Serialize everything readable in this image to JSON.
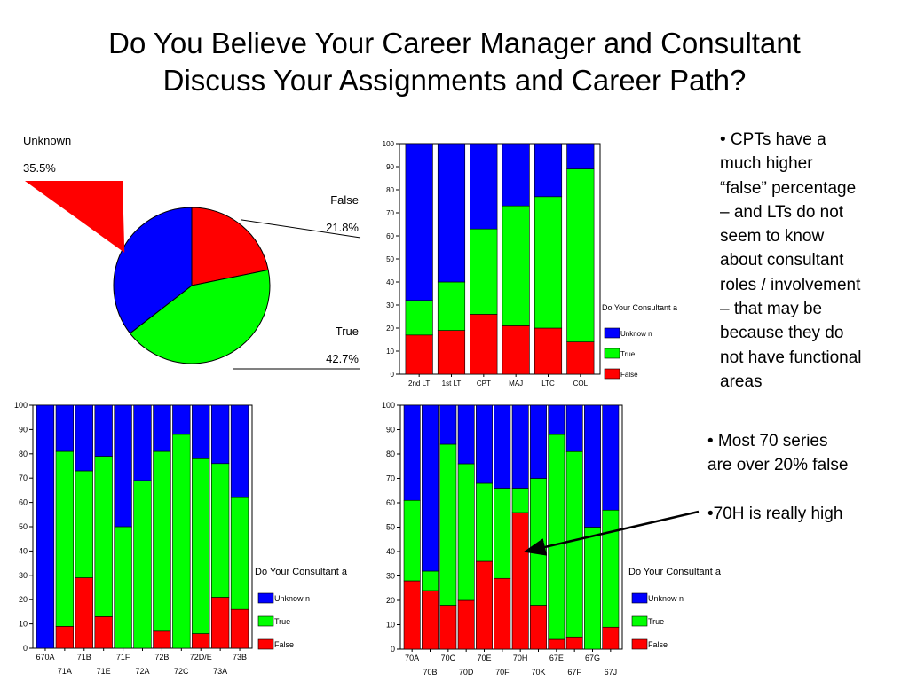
{
  "title": {
    "line1": "Do You Believe Your Career Manager and Consultant",
    "line2": "Discuss Your Assignments and Career Path?"
  },
  "colors": {
    "unknown": "#0000ff",
    "true": "#00ff00",
    "false": "#ff0000",
    "outline": "#000000"
  },
  "chart_data": [
    {
      "type": "pie",
      "slices": [
        {
          "label": "False",
          "value": 21.8,
          "display": "21.8%",
          "color": "#ff0000"
        },
        {
          "label": "True",
          "value": 42.7,
          "display": "42.7%",
          "color": "#00ff00"
        },
        {
          "label": "Unknown",
          "value": 35.5,
          "display": "35.5%",
          "color": "#0000ff"
        }
      ]
    },
    {
      "type": "bar",
      "stacked": true,
      "categories": [
        "2nd LT",
        "1st LT",
        "CPT",
        "MAJ",
        "LTC",
        "COL"
      ],
      "ylim": [
        0,
        100
      ],
      "yticks": [
        "0",
        "10",
        "20",
        "30",
        "40",
        "50",
        "60",
        "70",
        "80",
        "90",
        "100"
      ],
      "legend_title": "Do Your Consultant a",
      "legend": [
        "Unknow n",
        "True",
        "False"
      ],
      "series": [
        {
          "name": "False",
          "color": "#ff0000",
          "values": [
            17,
            19,
            26,
            21,
            20,
            14
          ]
        },
        {
          "name": "True",
          "color": "#00ff00",
          "values": [
            15,
            21,
            37,
            52,
            57,
            75
          ]
        },
        {
          "name": "Unknow n",
          "color": "#0000ff",
          "values": [
            68,
            60,
            37,
            27,
            23,
            11
          ]
        }
      ]
    },
    {
      "type": "bar",
      "stacked": true,
      "categories": [
        "670A",
        "71A",
        "71B",
        "71E",
        "71F",
        "72A",
        "72B",
        "72C",
        "72D/E",
        "73A",
        "73B"
      ],
      "ylim": [
        0,
        100
      ],
      "yticks": [
        "0",
        "10",
        "20",
        "30",
        "40",
        "50",
        "60",
        "70",
        "80",
        "90",
        "100"
      ],
      "legend_title": "Do Your Consultant a",
      "legend": [
        "Unknow n",
        "True",
        "False"
      ],
      "series": [
        {
          "name": "False",
          "color": "#ff0000",
          "values": [
            0,
            9,
            29,
            13,
            0,
            0,
            7,
            0,
            6,
            21,
            16
          ]
        },
        {
          "name": "True",
          "color": "#00ff00",
          "values": [
            0,
            72,
            44,
            66,
            50,
            69,
            74,
            88,
            72,
            55,
            46
          ]
        },
        {
          "name": "Unknow n",
          "color": "#0000ff",
          "values": [
            100,
            19,
            27,
            21,
            50,
            31,
            19,
            12,
            22,
            24,
            38
          ]
        }
      ]
    },
    {
      "type": "bar",
      "stacked": true,
      "categories": [
        "70A",
        "70B",
        "70C",
        "70D",
        "70E",
        "70F",
        "70H",
        "70K",
        "67E",
        "67F",
        "67G",
        "67J"
      ],
      "ylim": [
        0,
        100
      ],
      "yticks": [
        "0",
        "10",
        "20",
        "30",
        "40",
        "50",
        "60",
        "70",
        "80",
        "90",
        "100"
      ],
      "legend_title": "Do Your Consultant a",
      "legend": [
        "Unknow n",
        "True",
        "False"
      ],
      "series": [
        {
          "name": "False",
          "color": "#ff0000",
          "values": [
            28,
            24,
            18,
            20,
            36,
            29,
            56,
            18,
            4,
            5,
            0,
            9
          ]
        },
        {
          "name": "True",
          "color": "#00ff00",
          "values": [
            33,
            8,
            66,
            56,
            32,
            37,
            10,
            52,
            84,
            76,
            50,
            48
          ]
        },
        {
          "name": "Unknow n",
          "color": "#0000ff",
          "values": [
            39,
            68,
            16,
            24,
            32,
            34,
            34,
            30,
            12,
            19,
            50,
            43
          ]
        }
      ]
    }
  ],
  "notes": {
    "cpt_note": [
      "• CPTs have a",
      "much higher",
      "“false” percentage",
      "– and LTs do not",
      "seem to know",
      "about consultant",
      "roles / involvement",
      "– that may be",
      "because they do",
      "not have functional",
      "areas"
    ],
    "series70_note": [
      "• Most 70 series",
      "are over 20% false",
      "",
      "•70H is really high"
    ]
  }
}
